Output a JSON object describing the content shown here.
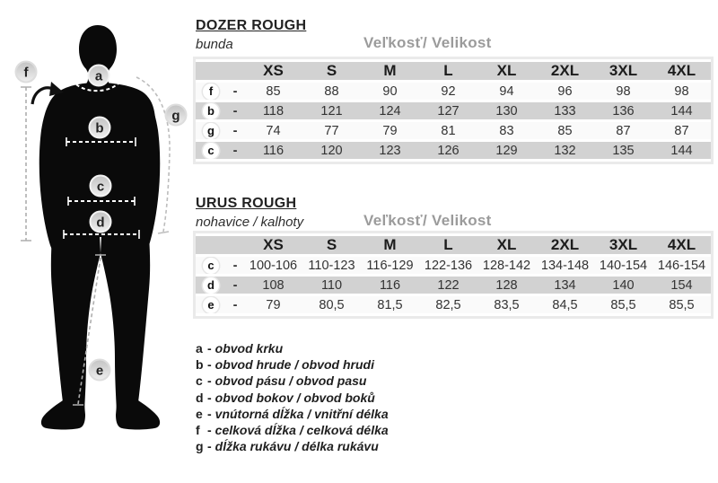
{
  "colors": {
    "row_gray": "#d2d2d2",
    "row_light": "#fafafa",
    "frame": "#eaeaea",
    "caption_gray": "#9b9b9b",
    "silhouette": "#0a0a0a"
  },
  "figure": {
    "badges": [
      {
        "letter": "f"
      },
      {
        "letter": "a"
      },
      {
        "letter": "g"
      },
      {
        "letter": "b"
      },
      {
        "letter": "c"
      },
      {
        "letter": "d"
      },
      {
        "letter": "e"
      }
    ]
  },
  "tables": [
    {
      "title": "DOZER ROUGH",
      "subtitle": "bunda",
      "size_caption": "Veľkosť/ Velikost",
      "columns": [
        "XS",
        "S",
        "M",
        "L",
        "XL",
        "2XL",
        "3XL",
        "4XL"
      ],
      "rows": [
        {
          "letter": "f",
          "dash": "-",
          "values": [
            "85",
            "88",
            "90",
            "92",
            "94",
            "96",
            "98",
            "98"
          ]
        },
        {
          "letter": "b",
          "dash": "-",
          "values": [
            "118",
            "121",
            "124",
            "127",
            "130",
            "133",
            "136",
            "144"
          ]
        },
        {
          "letter": "g",
          "dash": "-",
          "values": [
            "74",
            "77",
            "79",
            "81",
            "83",
            "85",
            "87",
            "87"
          ]
        },
        {
          "letter": "c",
          "dash": "-",
          "values": [
            "116",
            "120",
            "123",
            "126",
            "129",
            "132",
            "135",
            "144"
          ]
        }
      ]
    },
    {
      "title": "URUS ROUGH",
      "subtitle": "nohavice / kalhoty",
      "size_caption": "Veľkosť/ Velikost",
      "columns": [
        "XS",
        "S",
        "M",
        "L",
        "XL",
        "2XL",
        "3XL",
        "4XL"
      ],
      "rows": [
        {
          "letter": "c",
          "dash": "-",
          "values": [
            "100-106",
            "110-123",
            "116-129",
            "122-136",
            "128-142",
            "134-148",
            "140-154",
            "146-154"
          ]
        },
        {
          "letter": "d",
          "dash": "-",
          "values": [
            "108",
            "110",
            "116",
            "122",
            "128",
            "134",
            "140",
            "154"
          ]
        },
        {
          "letter": "e",
          "dash": "-",
          "values": [
            "79",
            "80,5",
            "81,5",
            "82,5",
            "83,5",
            "84,5",
            "85,5",
            "85,5"
          ]
        }
      ]
    }
  ],
  "legend": {
    "items": [
      {
        "letter": "a",
        "dash": "-",
        "text": "obvod krku"
      },
      {
        "letter": "b",
        "dash": "-",
        "text": "obvod hrude / obvod hrudi"
      },
      {
        "letter": "c",
        "dash": "-",
        "text": "obvod pásu / obvod pasu"
      },
      {
        "letter": "d",
        "dash": "-",
        "text": "obvod bokov / obvod boků"
      },
      {
        "letter": "e",
        "dash": "-",
        "text": "vnútorná dĺžka / vnitřní délka"
      },
      {
        "letter": "f",
        "dash": "-",
        "text": "celková dĺžka / celková délka"
      },
      {
        "letter": "g",
        "dash": "-",
        "text": "dĺžka rukávu / délka rukávu"
      }
    ]
  }
}
